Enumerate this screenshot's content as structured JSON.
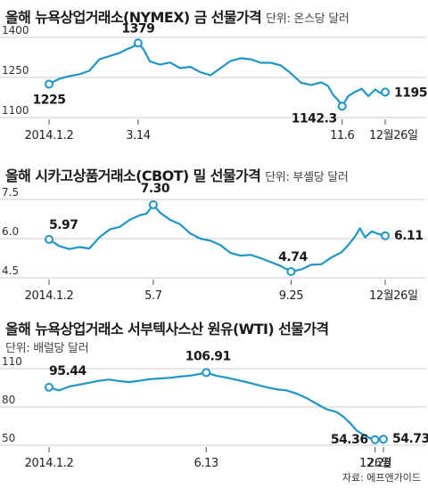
{
  "charts": [
    {
      "title": "올해 뉴욕상업거래소(NYMEX) 금 선물가격",
      "unit": "단위: 온스당 달러",
      "chart_data": {
        "type": "line",
        "ylim": [
          1100,
          1400
        ],
        "yticks": [
          "1100",
          "1250",
          "1400"
        ],
        "x_labels": [
          "2014.1.2",
          "3.14",
          "11.6",
          "12월26일"
        ],
        "points": [
          [
            0,
            1225
          ],
          [
            0.03,
            1245
          ],
          [
            0.06,
            1255
          ],
          [
            0.09,
            1262
          ],
          [
            0.12,
            1275
          ],
          [
            0.15,
            1318
          ],
          [
            0.18,
            1330
          ],
          [
            0.21,
            1342
          ],
          [
            0.23,
            1355
          ],
          [
            0.25,
            1365
          ],
          [
            0.265,
            1379
          ],
          [
            0.28,
            1358
          ],
          [
            0.3,
            1310
          ],
          [
            0.33,
            1298
          ],
          [
            0.36,
            1306
          ],
          [
            0.39,
            1285
          ],
          [
            0.42,
            1290
          ],
          [
            0.45,
            1270
          ],
          [
            0.48,
            1258
          ],
          [
            0.51,
            1285
          ],
          [
            0.54,
            1312
          ],
          [
            0.57,
            1322
          ],
          [
            0.6,
            1318
          ],
          [
            0.63,
            1305
          ],
          [
            0.66,
            1305
          ],
          [
            0.69,
            1295
          ],
          [
            0.72,
            1265
          ],
          [
            0.75,
            1230
          ],
          [
            0.78,
            1222
          ],
          [
            0.81,
            1232
          ],
          [
            0.83,
            1218
          ],
          [
            0.845,
            1185
          ],
          [
            0.86,
            1165
          ],
          [
            0.872,
            1142.3
          ],
          [
            0.89,
            1180
          ],
          [
            0.91,
            1196
          ],
          [
            0.93,
            1208
          ],
          [
            0.95,
            1180
          ],
          [
            0.97,
            1205
          ],
          [
            0.985,
            1192
          ],
          [
            1.0,
            1195.3
          ]
        ],
        "labels": [
          {
            "text": "1225",
            "at": 0
          },
          {
            "text": "1379",
            "at": 10
          },
          {
            "text": "1142.3",
            "at": 33
          },
          {
            "text": "1195.3",
            "at": 40
          }
        ]
      }
    },
    {
      "title": "올해 시카고상품거래소(CBOT) 밀 선물가격",
      "unit": "단위: 부셸당 달러",
      "chart_data": {
        "type": "line",
        "ylim": [
          4.5,
          7.5
        ],
        "yticks": [
          "4.5",
          "6.0",
          "7.5"
        ],
        "x_labels": [
          "2014.1.2",
          "5.7",
          "9.25",
          "12월26일"
        ],
        "points": [
          [
            0,
            5.97
          ],
          [
            0.03,
            5.72
          ],
          [
            0.06,
            5.6
          ],
          [
            0.09,
            5.68
          ],
          [
            0.12,
            5.62
          ],
          [
            0.15,
            6.05
          ],
          [
            0.18,
            6.35
          ],
          [
            0.21,
            6.45
          ],
          [
            0.24,
            6.72
          ],
          [
            0.27,
            6.9
          ],
          [
            0.29,
            6.95
          ],
          [
            0.31,
            7.3
          ],
          [
            0.33,
            7.0
          ],
          [
            0.36,
            6.72
          ],
          [
            0.39,
            6.55
          ],
          [
            0.42,
            6.2
          ],
          [
            0.45,
            6.0
          ],
          [
            0.48,
            5.92
          ],
          [
            0.51,
            5.75
          ],
          [
            0.54,
            5.45
          ],
          [
            0.57,
            5.35
          ],
          [
            0.6,
            5.38
          ],
          [
            0.63,
            5.25
          ],
          [
            0.66,
            5.1
          ],
          [
            0.69,
            4.95
          ],
          [
            0.72,
            4.74
          ],
          [
            0.75,
            4.82
          ],
          [
            0.78,
            5.0
          ],
          [
            0.81,
            5.02
          ],
          [
            0.84,
            5.28
          ],
          [
            0.87,
            5.48
          ],
          [
            0.89,
            5.75
          ],
          [
            0.91,
            6.08
          ],
          [
            0.925,
            6.4
          ],
          [
            0.94,
            6.05
          ],
          [
            0.96,
            6.28
          ],
          [
            0.98,
            6.18
          ],
          [
            1.0,
            6.11
          ]
        ],
        "labels": [
          {
            "text": "5.97",
            "at": 0
          },
          {
            "text": "7.30",
            "at": 11
          },
          {
            "text": "4.74",
            "at": 25
          },
          {
            "text": "6.11",
            "at": 37
          }
        ]
      }
    },
    {
      "title": "올해 뉴욕상업거래소 서부텍사스산 원유(WTI) 선물가격",
      "unit": "단위: 배럴당 달러",
      "chart_data": {
        "type": "line",
        "ylim": [
          50,
          110
        ],
        "yticks": [
          "50",
          "80",
          "110"
        ],
        "x_labels": [
          "2014.1.2",
          "6.13",
          "12.28",
          "26일"
        ],
        "points": [
          [
            0,
            95.44
          ],
          [
            0.03,
            93
          ],
          [
            0.06,
            96
          ],
          [
            0.09,
            97.5
          ],
          [
            0.12,
            99
          ],
          [
            0.15,
            100.5
          ],
          [
            0.18,
            101.5
          ],
          [
            0.21,
            100.2
          ],
          [
            0.24,
            99.5
          ],
          [
            0.27,
            100.5
          ],
          [
            0.3,
            101.8
          ],
          [
            0.33,
            102.3
          ],
          [
            0.36,
            102.8
          ],
          [
            0.39,
            103.8
          ],
          [
            0.42,
            104.5
          ],
          [
            0.45,
            105.8
          ],
          [
            0.47,
            106.91
          ],
          [
            0.5,
            104.5
          ],
          [
            0.53,
            103.0
          ],
          [
            0.56,
            101.2
          ],
          [
            0.59,
            99.5
          ],
          [
            0.62,
            97.5
          ],
          [
            0.65,
            95.5
          ],
          [
            0.68,
            93.8
          ],
          [
            0.71,
            93.0
          ],
          [
            0.74,
            90.5
          ],
          [
            0.77,
            87.0
          ],
          [
            0.8,
            82.5
          ],
          [
            0.83,
            78.2
          ],
          [
            0.86,
            76.0
          ],
          [
            0.88,
            72.5
          ],
          [
            0.9,
            67.5
          ],
          [
            0.92,
            61.5
          ],
          [
            0.94,
            58.2
          ],
          [
            0.96,
            55.5
          ],
          [
            0.975,
            54.36
          ],
          [
            0.99,
            55.2
          ],
          [
            1.0,
            54.73
          ]
        ],
        "labels": [
          {
            "text": "95.44",
            "at": 0
          },
          {
            "text": "106.91",
            "at": 16
          },
          {
            "text": "54.36",
            "at": 35
          },
          {
            "text": "54.73",
            "at": 37
          }
        ]
      }
    }
  ],
  "source": "자료: 에프앤가이드",
  "colors": {
    "line": "#1f96c8",
    "marker_fill": "#ffffff",
    "grid": "#bdbdbd",
    "text": "#222222"
  }
}
